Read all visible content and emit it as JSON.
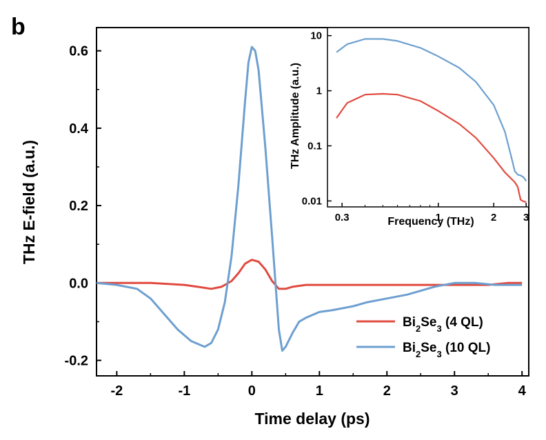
{
  "panel_label": "b",
  "colors": {
    "red": "#e04a3f",
    "blue": "#6d9fd0",
    "axis": "#000000"
  },
  "chart_data": [
    {
      "type": "line",
      "xlabel": "Time delay (ps)",
      "ylabel": "THz E-field (a.u.)",
      "xlim": [
        -2.3,
        4.1
      ],
      "ylim": [
        -0.24,
        0.66
      ],
      "xticks": [
        -2,
        -1,
        0,
        1,
        2,
        3,
        4
      ],
      "xtick_labels": [
        "-2",
        "-1",
        "0",
        "1",
        "2",
        "3",
        "4"
      ],
      "yticks": [
        -0.2,
        0.0,
        0.2,
        0.4,
        0.6
      ],
      "ytick_labels": [
        "-0.2",
        "0.0",
        "0.2",
        "0.4",
        "0.6"
      ],
      "legend": {
        "position": "bottom-right",
        "entries": [
          {
            "base": "Bi",
            "sub1": "2",
            "mid": "Se",
            "sub2": "3",
            "suffix": " (4 QL)"
          },
          {
            "base": "Bi",
            "sub1": "2",
            "mid": "Se",
            "sub2": "3",
            "suffix": " (10 QL)"
          }
        ]
      },
      "series": [
        {
          "color": "red",
          "x": [
            -2.3,
            -2.0,
            -1.5,
            -1.0,
            -0.8,
            -0.6,
            -0.45,
            -0.3,
            -0.2,
            -0.1,
            0.0,
            0.1,
            0.2,
            0.3,
            0.4,
            0.5,
            0.6,
            0.8,
            1.0,
            1.5,
            2.0,
            2.5,
            3.0,
            3.5,
            3.8,
            4.0
          ],
          "y": [
            0.0,
            0.0,
            0.0,
            -0.005,
            -0.01,
            -0.015,
            -0.01,
            0.005,
            0.025,
            0.05,
            0.06,
            0.055,
            0.035,
            0.005,
            -0.015,
            -0.015,
            -0.01,
            -0.005,
            -0.005,
            -0.005,
            -0.005,
            -0.005,
            -0.005,
            -0.005,
            0.0,
            0.0
          ]
        },
        {
          "color": "blue",
          "x": [
            -2.3,
            -2.0,
            -1.7,
            -1.5,
            -1.3,
            -1.1,
            -0.9,
            -0.7,
            -0.6,
            -0.5,
            -0.4,
            -0.3,
            -0.2,
            -0.1,
            -0.05,
            0.0,
            0.05,
            0.1,
            0.2,
            0.3,
            0.4,
            0.45,
            0.5,
            0.6,
            0.7,
            0.8,
            1.0,
            1.2,
            1.5,
            1.7,
            2.0,
            2.3,
            2.5,
            2.7,
            3.0,
            3.3,
            3.6,
            3.8,
            4.0
          ],
          "y": [
            0.0,
            -0.005,
            -0.015,
            -0.04,
            -0.08,
            -0.12,
            -0.15,
            -0.165,
            -0.155,
            -0.12,
            -0.05,
            0.07,
            0.25,
            0.47,
            0.57,
            0.61,
            0.6,
            0.55,
            0.35,
            0.12,
            -0.12,
            -0.175,
            -0.165,
            -0.13,
            -0.1,
            -0.09,
            -0.075,
            -0.07,
            -0.06,
            -0.05,
            -0.04,
            -0.03,
            -0.02,
            -0.01,
            0.0,
            0.0,
            -0.005,
            -0.005,
            -0.005
          ]
        }
      ]
    },
    {
      "type": "line",
      "xlabel": "Frequency (THz)",
      "ylabel": "THz Amplitude (a.u.)",
      "xscale": "log",
      "yscale": "log",
      "xlim": [
        0.25,
        3.1
      ],
      "ylim": [
        0.0078,
        14
      ],
      "xticks": [
        0.3,
        1,
        2,
        3
      ],
      "xtick_labels": [
        "0.3",
        "1",
        "2",
        "3"
      ],
      "yticks": [
        0.01,
        0.1,
        1,
        10
      ],
      "ytick_labels": [
        "0.01",
        "0.1",
        "1",
        "10"
      ],
      "series": [
        {
          "color": "blue",
          "x": [
            0.28,
            0.32,
            0.4,
            0.5,
            0.6,
            0.8,
            1.0,
            1.3,
            1.6,
            2.0,
            2.3,
            2.5,
            2.6,
            2.7,
            2.8,
            2.9,
            3.0
          ],
          "y": [
            5.0,
            7.0,
            8.7,
            8.7,
            8.0,
            6.0,
            4.2,
            2.6,
            1.45,
            0.55,
            0.18,
            0.06,
            0.035,
            0.03,
            0.029,
            0.027,
            0.023
          ]
        },
        {
          "color": "red",
          "x": [
            0.28,
            0.32,
            0.4,
            0.5,
            0.6,
            0.8,
            1.0,
            1.3,
            1.6,
            2.0,
            2.3,
            2.5,
            2.6,
            2.7,
            2.8,
            2.9,
            3.0
          ],
          "y": [
            0.32,
            0.6,
            0.85,
            0.88,
            0.85,
            0.65,
            0.43,
            0.25,
            0.14,
            0.06,
            0.033,
            0.025,
            0.022,
            0.018,
            0.0105,
            0.0098,
            0.0096
          ]
        }
      ]
    }
  ]
}
